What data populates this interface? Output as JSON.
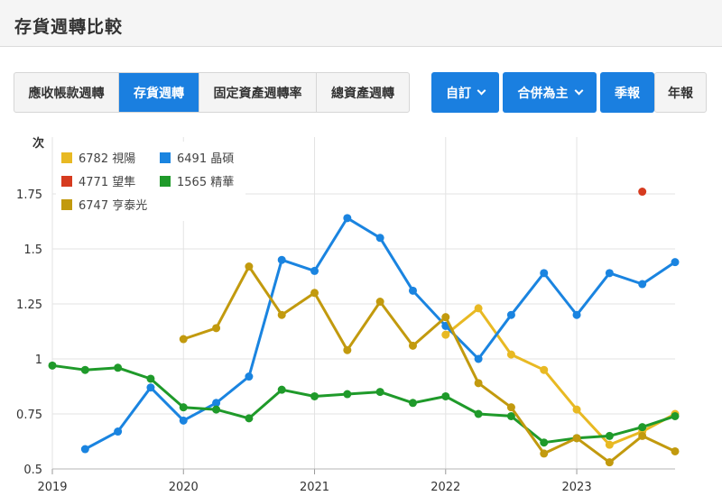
{
  "header": {
    "title": "存貨週轉比較"
  },
  "tabs": [
    {
      "label": "應收帳款週轉",
      "active": false
    },
    {
      "label": "存貨週轉",
      "active": true
    },
    {
      "label": "固定資產週轉率",
      "active": false
    },
    {
      "label": "總資產週轉",
      "active": false
    }
  ],
  "controls": {
    "custom_label": "自訂",
    "consolidated_label": "合併為主",
    "quarterly_label": "季報",
    "annual_label": "年報"
  },
  "chart_data": {
    "type": "line",
    "ylabel": "次",
    "ylim": [
      0.5,
      1.8
    ],
    "yticks": [
      0.5,
      0.75,
      1,
      1.25,
      1.5,
      1.75
    ],
    "ytick_labels": [
      "0.5",
      "0.75",
      "1",
      "1.25",
      "1.5",
      "1.75"
    ],
    "xlim": [
      2019.0,
      2023.75
    ],
    "xticks": [
      2019,
      2020,
      2021,
      2022,
      2023
    ],
    "xtick_labels": [
      "2019",
      "2020",
      "2021",
      "2022",
      "2023"
    ],
    "grid": true,
    "legend_position": "top-left",
    "series": [
      {
        "name": "6782 視陽",
        "color": "#e8b923",
        "x": [
          2022.0,
          2022.25,
          2022.5,
          2022.75,
          2023.0,
          2023.25,
          2023.5,
          2023.75
        ],
        "y": [
          1.11,
          1.23,
          1.02,
          0.95,
          0.77,
          0.61,
          0.67,
          0.75
        ]
      },
      {
        "name": "6491 晶碩",
        "color": "#1a84e0",
        "x": [
          2019.25,
          2019.5,
          2019.75,
          2020.0,
          2020.25,
          2020.5,
          2020.75,
          2021.0,
          2021.25,
          2021.5,
          2021.75,
          2022.0,
          2022.25,
          2022.5,
          2022.75,
          2023.0,
          2023.25,
          2023.5,
          2023.75
        ],
        "y": [
          0.59,
          0.67,
          0.87,
          0.72,
          0.8,
          0.92,
          1.45,
          1.4,
          1.64,
          1.55,
          1.31,
          1.15,
          1.0,
          1.2,
          1.39,
          1.2,
          1.39,
          1.34,
          1.44
        ]
      },
      {
        "name": "4771 望隼",
        "color": "#d63b1f",
        "x": [
          2023.5
        ],
        "y": [
          1.76
        ]
      },
      {
        "name": "1565 精華",
        "color": "#1f9a2a",
        "x": [
          2019.0,
          2019.25,
          2019.5,
          2019.75,
          2020.0,
          2020.25,
          2020.5,
          2020.75,
          2021.0,
          2021.25,
          2021.5,
          2021.75,
          2022.0,
          2022.25,
          2022.5,
          2022.75,
          2023.0,
          2023.25,
          2023.5,
          2023.75
        ],
        "y": [
          0.97,
          0.95,
          0.96,
          0.91,
          0.78,
          0.77,
          0.73,
          0.86,
          0.83,
          0.84,
          0.85,
          0.8,
          0.83,
          0.75,
          0.74,
          0.62,
          0.64,
          0.65,
          0.69,
          0.74
        ]
      },
      {
        "name": "6747 亨泰光",
        "color": "#c29a0e",
        "x": [
          2020.0,
          2020.25,
          2020.5,
          2020.75,
          2021.0,
          2021.25,
          2021.5,
          2021.75,
          2022.0,
          2022.25,
          2022.5,
          2022.75,
          2023.0,
          2023.25,
          2023.5,
          2023.75
        ],
        "y": [
          1.09,
          1.14,
          1.42,
          1.2,
          1.3,
          1.04,
          1.26,
          1.06,
          1.19,
          0.89,
          0.78,
          0.57,
          0.64,
          0.53,
          0.65,
          0.58
        ]
      }
    ]
  }
}
